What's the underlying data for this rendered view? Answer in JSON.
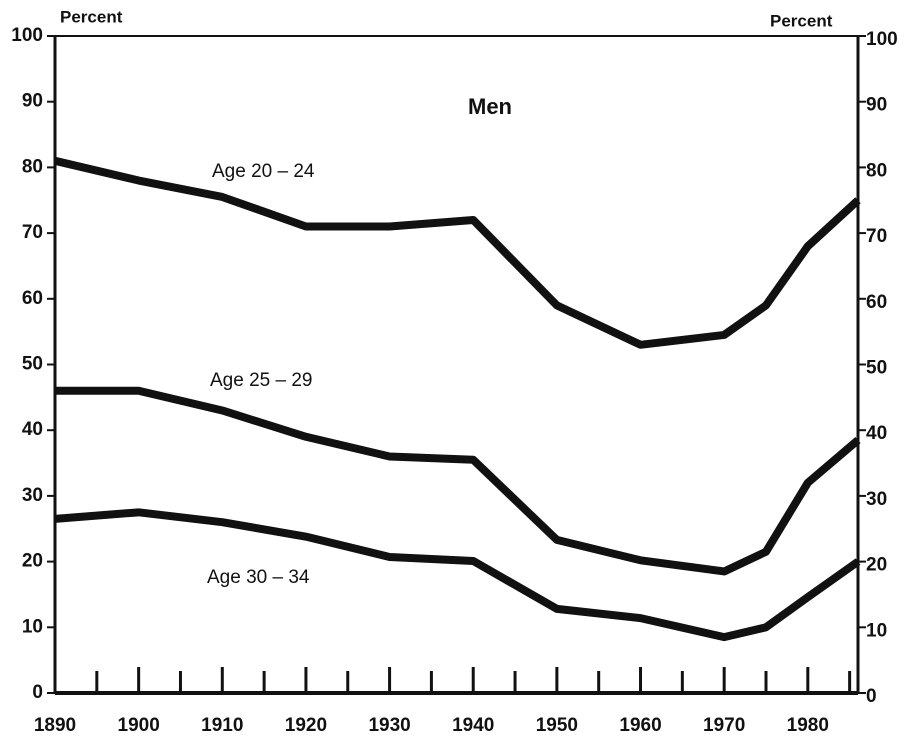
{
  "chart_data": {
    "type": "line",
    "title": "Men",
    "ylabel": "Percent",
    "y2label": "Percent",
    "x": [
      1890,
      1900,
      1910,
      1920,
      1930,
      1940,
      1950,
      1960,
      1970,
      1975,
      1980,
      1986
    ],
    "series": [
      {
        "name": "Age 20 – 24",
        "color": "#111111",
        "values": [
          81,
          78,
          75.5,
          71,
          71,
          72,
          59,
          53,
          54.5,
          59,
          68,
          75
        ]
      },
      {
        "name": "Age 25 – 29",
        "color": "#111111",
        "values": [
          46,
          46,
          43,
          39,
          36,
          35.5,
          23.3,
          20.2,
          18.5,
          21.5,
          32,
          38.5
        ]
      },
      {
        "name": "Age 30 – 34",
        "color": "#111111",
        "values": [
          26.5,
          27.5,
          26,
          23.8,
          20.7,
          20.1,
          12.8,
          11.4,
          8.5,
          10,
          14.6,
          20
        ]
      }
    ],
    "xlim": [
      1890,
      1986
    ],
    "xticks": [
      1890,
      1900,
      1910,
      1920,
      1930,
      1940,
      1950,
      1960,
      1970,
      1980
    ],
    "minor_xticks": [
      1895,
      1905,
      1915,
      1925,
      1935,
      1945,
      1955,
      1965,
      1975,
      1985
    ],
    "ylim": [
      0,
      100
    ],
    "yticks": [
      0,
      10,
      20,
      30,
      40,
      50,
      60,
      70,
      80,
      90,
      100
    ],
    "y2lim": [
      0,
      100
    ],
    "y2ticks": [
      0,
      10,
      20,
      30,
      40,
      50,
      60,
      70,
      80,
      90,
      100
    ]
  }
}
